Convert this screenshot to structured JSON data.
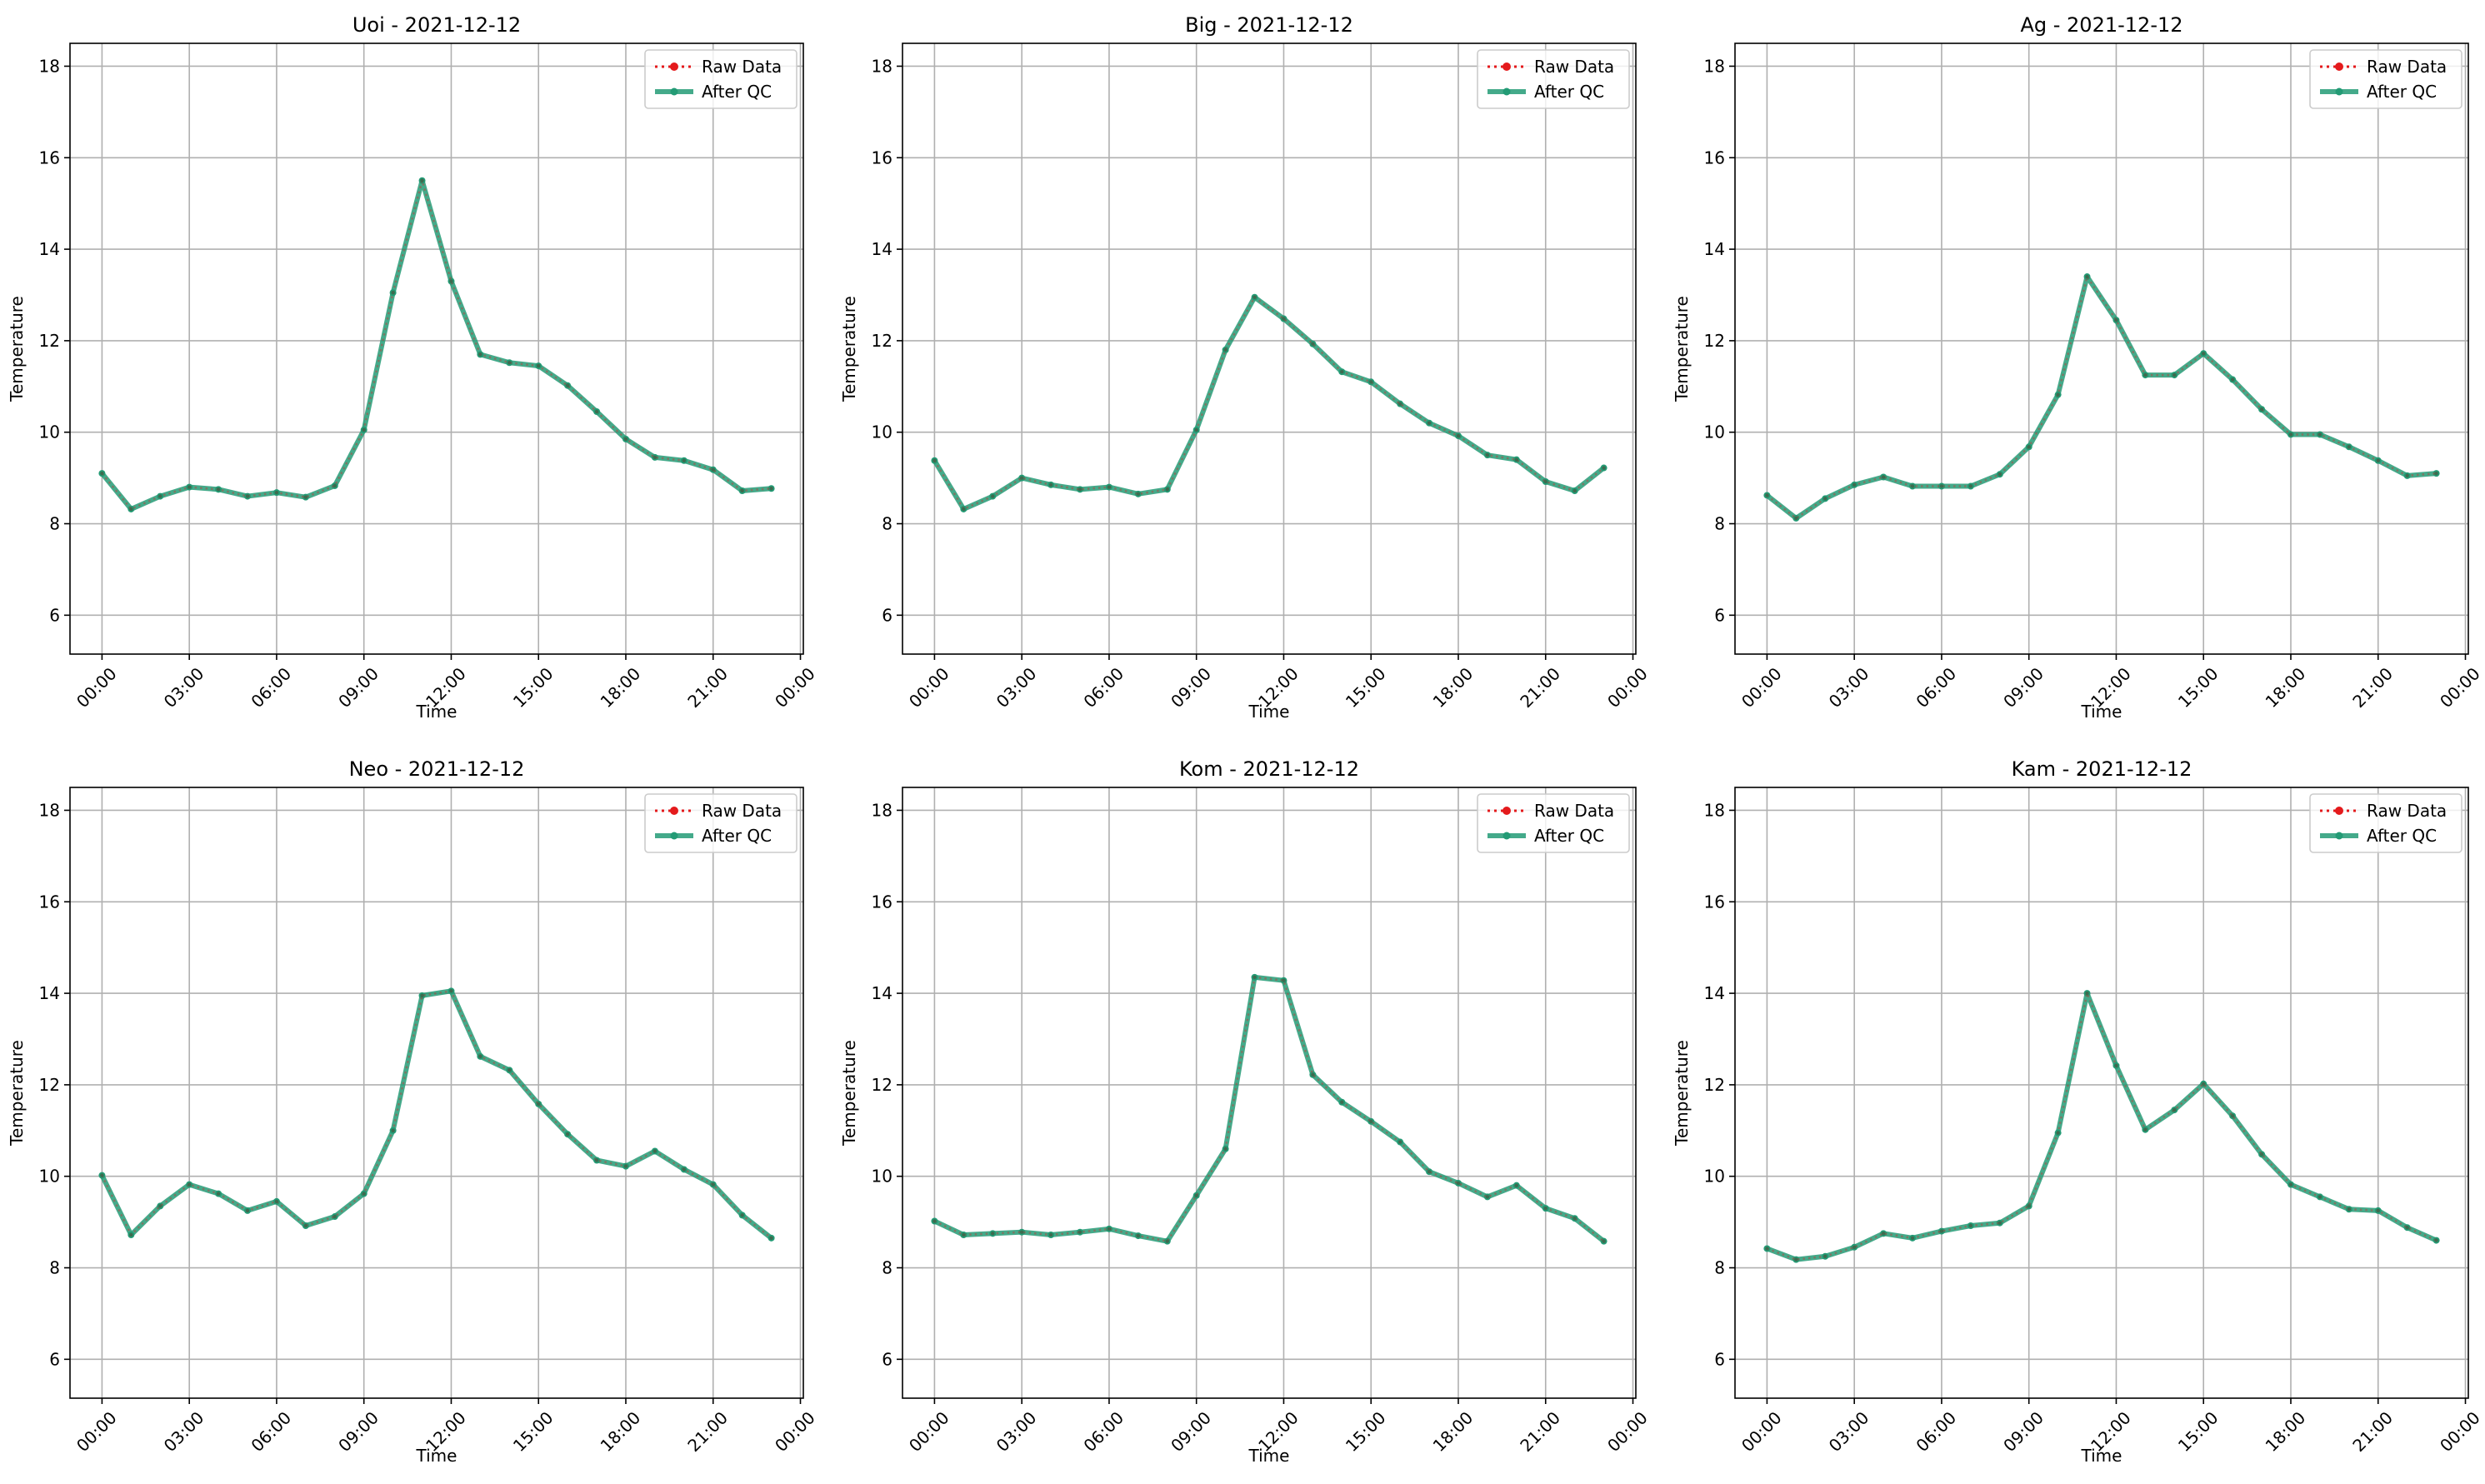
{
  "figure": {
    "colors": {
      "raw": "#e41a1c",
      "qc": "#239b75",
      "grid": "#b0b0b0"
    },
    "legend_placement": "upper-right"
  },
  "chart_data": [
    {
      "type": "line",
      "title": "Uoi - 2021-12-12",
      "xlabel": "Time",
      "ylabel": "Temperature",
      "x_unit": "hour of day",
      "xlim": [
        -1.1,
        24.1
      ],
      "ylim": [
        5.15,
        18.5
      ],
      "x_ticks": [
        0,
        3,
        6,
        9,
        12,
        15,
        18,
        21,
        24
      ],
      "x_tick_labels": [
        "00:00",
        "03:00",
        "06:00",
        "09:00",
        "12:00",
        "15:00",
        "18:00",
        "21:00",
        "00:00"
      ],
      "y_ticks": [
        6,
        8,
        10,
        12,
        14,
        16,
        18
      ],
      "y_tick_labels": [
        "6",
        "8",
        "10",
        "12",
        "14",
        "16",
        "18"
      ],
      "grid": true,
      "legend": [
        "Raw Data",
        "After QC"
      ],
      "x": [
        0,
        1,
        2,
        3,
        4,
        5,
        6,
        7,
        8,
        9,
        10,
        11,
        12,
        13,
        14,
        15,
        16,
        17,
        18,
        19,
        20,
        21,
        22,
        23
      ],
      "series": [
        {
          "name": "Raw Data",
          "style": "dotted",
          "values": [
            9.1,
            8.32,
            8.6,
            8.8,
            8.75,
            8.6,
            8.68,
            8.58,
            8.83,
            10.05,
            13.05,
            15.5,
            13.3,
            11.7,
            11.52,
            11.45,
            11.02,
            10.45,
            9.85,
            9.45,
            9.38,
            9.18,
            8.72,
            8.77
          ]
        },
        {
          "name": "After QC",
          "style": "solid",
          "values": [
            9.1,
            8.32,
            8.6,
            8.8,
            8.75,
            8.6,
            8.68,
            8.58,
            8.83,
            10.05,
            13.05,
            15.5,
            13.3,
            11.7,
            11.52,
            11.45,
            11.02,
            10.45,
            9.85,
            9.45,
            9.38,
            9.18,
            8.72,
            8.77
          ]
        }
      ]
    },
    {
      "type": "line",
      "title": "Big - 2021-12-12",
      "xlabel": "Time",
      "ylabel": "Temperature",
      "x_unit": "hour of day",
      "xlim": [
        -1.1,
        24.1
      ],
      "ylim": [
        5.15,
        18.5
      ],
      "x_ticks": [
        0,
        3,
        6,
        9,
        12,
        15,
        18,
        21,
        24
      ],
      "x_tick_labels": [
        "00:00",
        "03:00",
        "06:00",
        "09:00",
        "12:00",
        "15:00",
        "18:00",
        "21:00",
        "00:00"
      ],
      "y_ticks": [
        6,
        8,
        10,
        12,
        14,
        16,
        18
      ],
      "y_tick_labels": [
        "6",
        "8",
        "10",
        "12",
        "14",
        "16",
        "18"
      ],
      "grid": true,
      "legend": [
        "Raw Data",
        "After QC"
      ],
      "x": [
        0,
        1,
        2,
        3,
        4,
        5,
        6,
        7,
        8,
        9,
        10,
        11,
        12,
        13,
        14,
        15,
        16,
        17,
        18,
        19,
        20,
        21,
        22,
        23
      ],
      "series": [
        {
          "name": "Raw Data",
          "style": "dotted",
          "values": [
            9.38,
            8.32,
            8.6,
            9.0,
            8.85,
            8.75,
            8.8,
            8.65,
            8.75,
            10.05,
            11.8,
            12.95,
            12.48,
            11.93,
            11.32,
            11.1,
            10.62,
            10.2,
            9.92,
            9.5,
            9.4,
            8.92,
            8.72,
            9.22
          ]
        },
        {
          "name": "After QC",
          "style": "solid",
          "values": [
            9.38,
            8.32,
            8.6,
            9.0,
            8.85,
            8.75,
            8.8,
            8.65,
            8.75,
            10.05,
            11.8,
            12.95,
            12.48,
            11.93,
            11.32,
            11.1,
            10.62,
            10.2,
            9.92,
            9.5,
            9.4,
            8.92,
            8.72,
            9.22
          ]
        }
      ]
    },
    {
      "type": "line",
      "title": "Ag - 2021-12-12",
      "xlabel": "Time",
      "ylabel": "Temperature",
      "x_unit": "hour of day",
      "xlim": [
        -1.1,
        24.1
      ],
      "ylim": [
        5.15,
        18.5
      ],
      "x_ticks": [
        0,
        3,
        6,
        9,
        12,
        15,
        18,
        21,
        24
      ],
      "x_tick_labels": [
        "00:00",
        "03:00",
        "06:00",
        "09:00",
        "12:00",
        "15:00",
        "18:00",
        "21:00",
        "00:00"
      ],
      "y_ticks": [
        6,
        8,
        10,
        12,
        14,
        16,
        18
      ],
      "y_tick_labels": [
        "6",
        "8",
        "10",
        "12",
        "14",
        "16",
        "18"
      ],
      "grid": true,
      "legend": [
        "Raw Data",
        "After QC"
      ],
      "x": [
        0,
        1,
        2,
        3,
        4,
        5,
        6,
        7,
        8,
        9,
        10,
        11,
        12,
        13,
        14,
        15,
        16,
        17,
        18,
        19,
        20,
        21,
        22,
        23
      ],
      "series": [
        {
          "name": "Raw Data",
          "style": "dotted",
          "values": [
            8.62,
            8.12,
            8.55,
            8.85,
            9.02,
            8.82,
            8.82,
            8.82,
            9.08,
            9.68,
            10.82,
            13.4,
            12.45,
            11.25,
            11.25,
            11.72,
            11.15,
            10.5,
            9.95,
            9.95,
            9.68,
            9.38,
            9.05,
            9.1
          ]
        },
        {
          "name": "After QC",
          "style": "solid",
          "values": [
            8.62,
            8.12,
            8.55,
            8.85,
            9.02,
            8.82,
            8.82,
            8.82,
            9.08,
            9.68,
            10.82,
            13.4,
            12.45,
            11.25,
            11.25,
            11.72,
            11.15,
            10.5,
            9.95,
            9.95,
            9.68,
            9.38,
            9.05,
            9.1
          ]
        }
      ]
    },
    {
      "type": "line",
      "title": "Neo - 2021-12-12",
      "xlabel": "Time",
      "ylabel": "Temperature",
      "x_unit": "hour of day",
      "xlim": [
        -1.1,
        24.1
      ],
      "ylim": [
        5.15,
        18.5
      ],
      "x_ticks": [
        0,
        3,
        6,
        9,
        12,
        15,
        18,
        21,
        24
      ],
      "x_tick_labels": [
        "00:00",
        "03:00",
        "06:00",
        "09:00",
        "12:00",
        "15:00",
        "18:00",
        "21:00",
        "00:00"
      ],
      "y_ticks": [
        6,
        8,
        10,
        12,
        14,
        16,
        18
      ],
      "y_tick_labels": [
        "6",
        "8",
        "10",
        "12",
        "14",
        "16",
        "18"
      ],
      "grid": true,
      "legend": [
        "Raw Data",
        "After QC"
      ],
      "x": [
        0,
        1,
        2,
        3,
        4,
        5,
        6,
        7,
        8,
        9,
        10,
        11,
        12,
        13,
        14,
        15,
        16,
        17,
        18,
        19,
        20,
        21,
        22,
        23
      ],
      "series": [
        {
          "name": "Raw Data",
          "style": "dotted",
          "values": [
            10.02,
            8.72,
            9.35,
            9.82,
            9.62,
            9.25,
            9.45,
            8.92,
            9.12,
            9.62,
            11.0,
            13.95,
            14.05,
            12.62,
            12.32,
            11.58,
            10.92,
            10.35,
            10.22,
            10.55,
            10.15,
            9.82,
            9.15,
            8.65
          ]
        },
        {
          "name": "After QC",
          "style": "solid",
          "values": [
            10.02,
            8.72,
            9.35,
            9.82,
            9.62,
            9.25,
            9.45,
            8.92,
            9.12,
            9.62,
            11.0,
            13.95,
            14.05,
            12.62,
            12.32,
            11.58,
            10.92,
            10.35,
            10.22,
            10.55,
            10.15,
            9.82,
            9.15,
            8.65
          ]
        }
      ]
    },
    {
      "type": "line",
      "title": "Kom - 2021-12-12",
      "xlabel": "Time",
      "ylabel": "Temperature",
      "x_unit": "hour of day",
      "xlim": [
        -1.1,
        24.1
      ],
      "ylim": [
        5.15,
        18.5
      ],
      "x_ticks": [
        0,
        3,
        6,
        9,
        12,
        15,
        18,
        21,
        24
      ],
      "x_tick_labels": [
        "00:00",
        "03:00",
        "06:00",
        "09:00",
        "12:00",
        "15:00",
        "18:00",
        "21:00",
        "00:00"
      ],
      "y_ticks": [
        6,
        8,
        10,
        12,
        14,
        16,
        18
      ],
      "y_tick_labels": [
        "6",
        "8",
        "10",
        "12",
        "14",
        "16",
        "18"
      ],
      "grid": true,
      "legend": [
        "Raw Data",
        "After QC"
      ],
      "x": [
        0,
        1,
        2,
        3,
        4,
        5,
        6,
        7,
        8,
        9,
        10,
        11,
        12,
        13,
        14,
        15,
        16,
        17,
        18,
        19,
        20,
        21,
        22,
        23
      ],
      "series": [
        {
          "name": "Raw Data",
          "style": "dotted",
          "values": [
            9.02,
            8.72,
            8.75,
            8.78,
            8.72,
            8.78,
            8.85,
            8.7,
            8.58,
            9.58,
            10.6,
            14.35,
            14.28,
            12.22,
            11.62,
            11.2,
            10.75,
            10.1,
            9.85,
            9.55,
            9.8,
            9.3,
            9.08,
            8.58
          ]
        },
        {
          "name": "After QC",
          "style": "solid",
          "values": [
            9.02,
            8.72,
            8.75,
            8.78,
            8.72,
            8.78,
            8.85,
            8.7,
            8.58,
            9.58,
            10.6,
            14.35,
            14.28,
            12.22,
            11.62,
            11.2,
            10.75,
            10.1,
            9.85,
            9.55,
            9.8,
            9.3,
            9.08,
            8.58
          ]
        }
      ]
    },
    {
      "type": "line",
      "title": "Kam - 2021-12-12",
      "xlabel": "Time",
      "ylabel": "Temperature",
      "x_unit": "hour of day",
      "xlim": [
        -1.1,
        24.1
      ],
      "ylim": [
        5.15,
        18.5
      ],
      "x_ticks": [
        0,
        3,
        6,
        9,
        12,
        15,
        18,
        21,
        24
      ],
      "x_tick_labels": [
        "00:00",
        "03:00",
        "06:00",
        "09:00",
        "12:00",
        "15:00",
        "18:00",
        "21:00",
        "00:00"
      ],
      "y_ticks": [
        6,
        8,
        10,
        12,
        14,
        16,
        18
      ],
      "y_tick_labels": [
        "6",
        "8",
        "10",
        "12",
        "14",
        "16",
        "18"
      ],
      "grid": true,
      "legend": [
        "Raw Data",
        "After QC"
      ],
      "x": [
        0,
        1,
        2,
        3,
        4,
        5,
        6,
        7,
        8,
        9,
        10,
        11,
        12,
        13,
        14,
        15,
        16,
        17,
        18,
        19,
        20,
        21,
        22,
        23
      ],
      "series": [
        {
          "name": "Raw Data",
          "style": "dotted",
          "values": [
            8.42,
            8.18,
            8.25,
            8.45,
            8.75,
            8.65,
            8.8,
            8.92,
            8.98,
            9.35,
            10.95,
            14.0,
            12.42,
            11.02,
            11.45,
            12.02,
            11.32,
            10.48,
            9.82,
            9.55,
            9.28,
            9.25,
            8.88,
            8.6
          ]
        },
        {
          "name": "After QC",
          "style": "solid",
          "values": [
            8.42,
            8.18,
            8.25,
            8.45,
            8.75,
            8.65,
            8.8,
            8.92,
            8.98,
            9.35,
            10.95,
            14.0,
            12.42,
            11.02,
            11.45,
            12.02,
            11.32,
            10.48,
            9.82,
            9.55,
            9.28,
            9.25,
            8.88,
            8.6
          ]
        }
      ]
    }
  ]
}
